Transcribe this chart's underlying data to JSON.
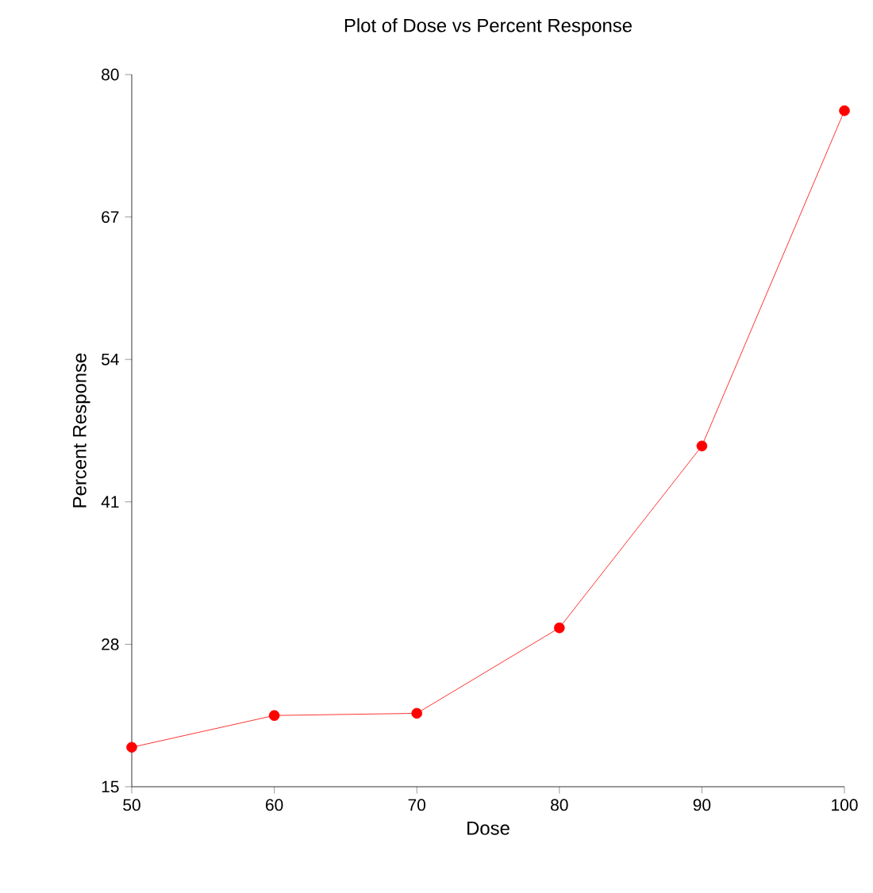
{
  "chart_data": {
    "type": "line",
    "title": "Plot of Dose vs Percent Response",
    "xlabel": "Dose",
    "ylabel": "Percent Response",
    "x": [
      50,
      60,
      70,
      80,
      90,
      100
    ],
    "series": [
      {
        "color": "#ff0000",
        "values": [
          18.6,
          21.5,
          21.7,
          29.5,
          46.1,
          76.7
        ]
      }
    ],
    "xlim": [
      50,
      100
    ],
    "xticks": [
      50,
      60,
      70,
      80,
      90,
      100
    ],
    "ylim": [
      15,
      80
    ],
    "yticks": [
      15,
      28,
      41,
      54,
      67,
      80
    ],
    "marker": "circle",
    "line_style": "solid",
    "grid": false
  }
}
